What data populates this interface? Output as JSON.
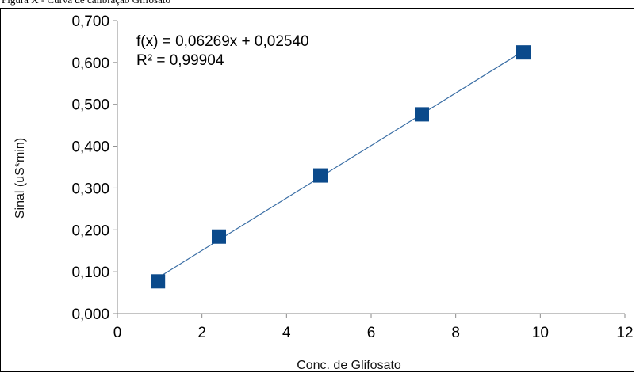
{
  "caption": "Figura X - Curva de calibração Glifosato",
  "chart_data": {
    "type": "scatter",
    "xlabel": "Conc. de Glifosato",
    "ylabel": "Sinal (uS*min)",
    "xlim": [
      0,
      12
    ],
    "ylim": [
      0,
      0.7
    ],
    "x_ticks": [
      "0",
      "2",
      "4",
      "6",
      "8",
      "10",
      "12"
    ],
    "y_ticks": [
      "0,000",
      "0,100",
      "0,200",
      "0,300",
      "0,400",
      "0,500",
      "0,600",
      "0,700"
    ],
    "grid": "none",
    "series": [
      {
        "marker": "square",
        "color": "#0b4a8b",
        "points": [
          {
            "x": 0.96,
            "y": 0.077
          },
          {
            "x": 2.4,
            "y": 0.184
          },
          {
            "x": 4.8,
            "y": 0.33
          },
          {
            "x": 7.2,
            "y": 0.476
          },
          {
            "x": 9.6,
            "y": 0.624
          }
        ]
      }
    ],
    "trendline": {
      "slope": 0.06269,
      "intercept": 0.0254,
      "color": "#3a6ea5",
      "x_range": [
        0.96,
        9.6
      ]
    },
    "annotations": [
      "f(x) = 0,06269x + 0,02540",
      "R² = 0,99904"
    ]
  }
}
